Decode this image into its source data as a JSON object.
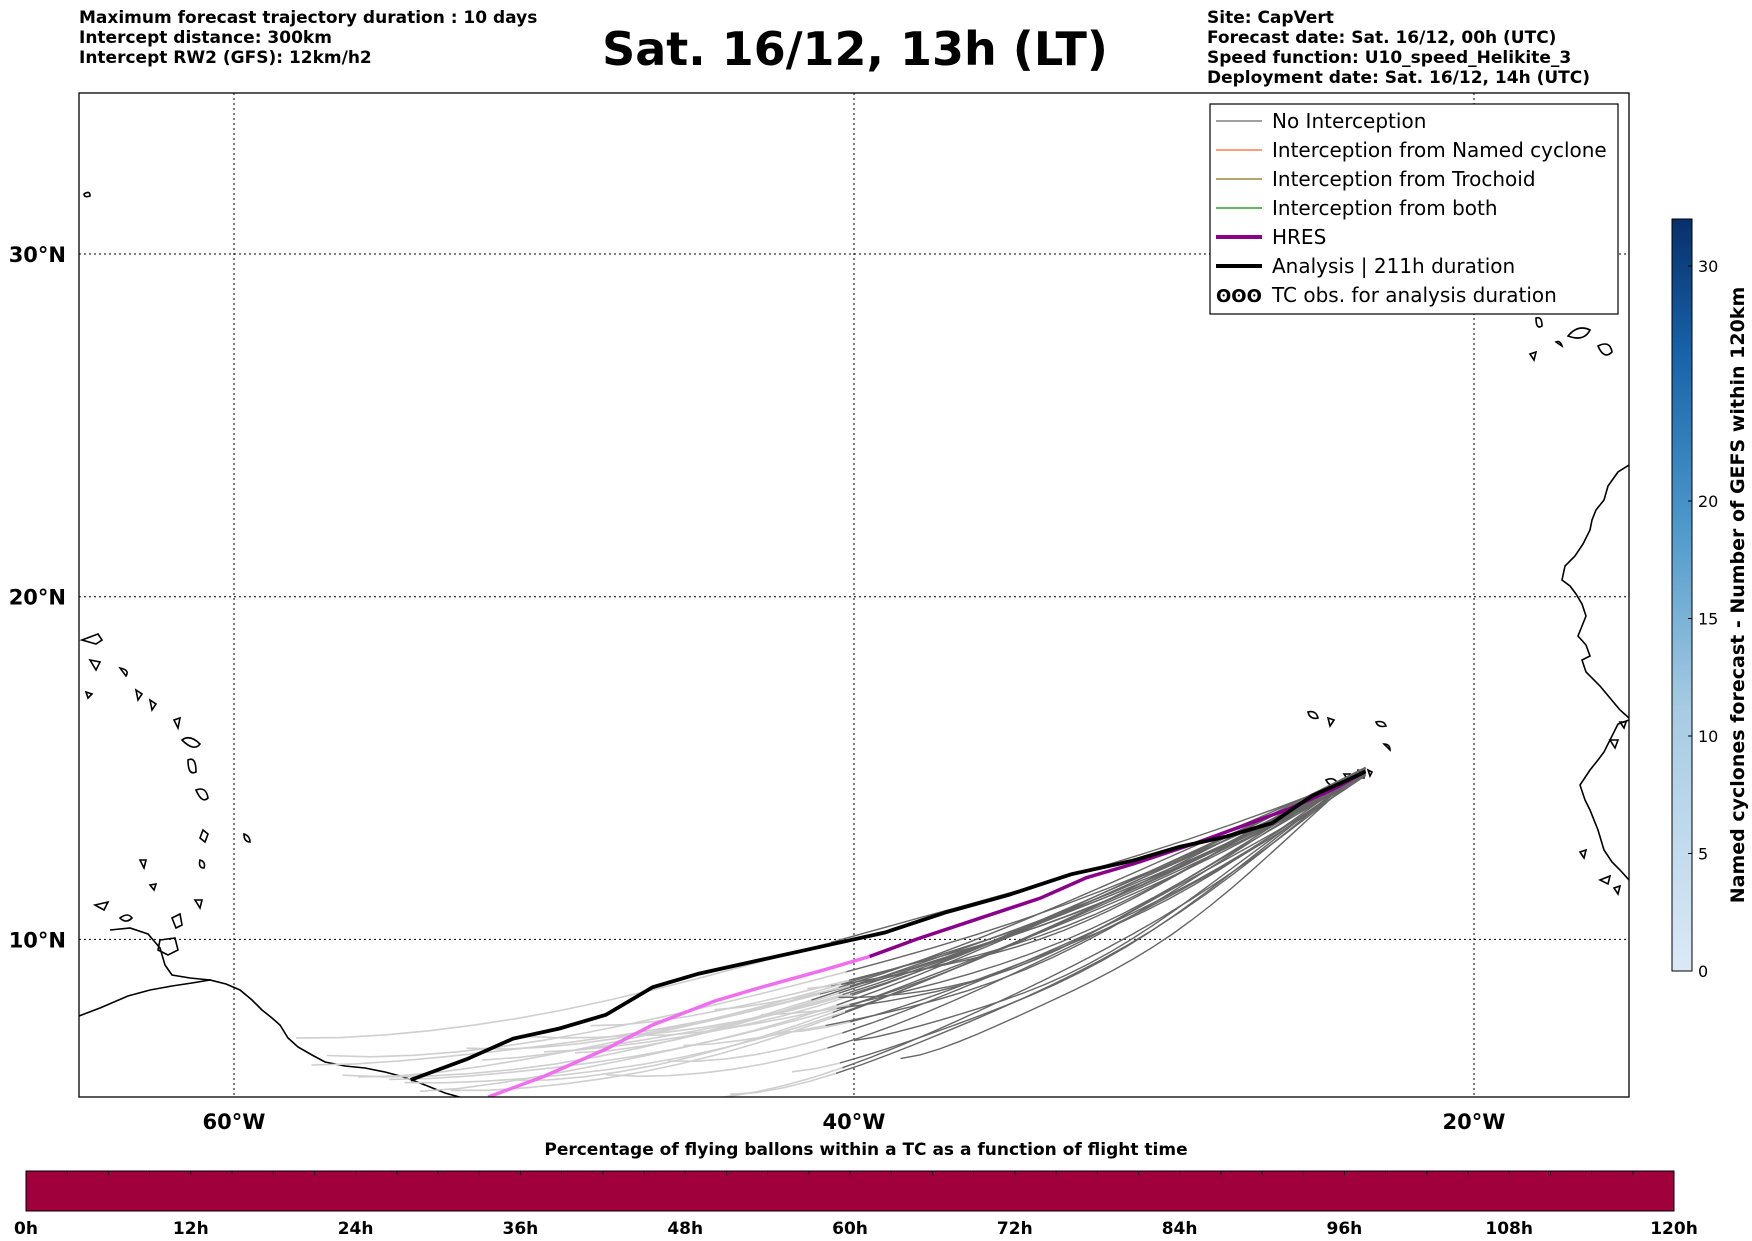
{
  "header": {
    "left_lines": [
      "Maximum forecast trajectory duration : 10 days",
      "Intercept distance: 300km",
      "Intercept RW2 (GFS):  12km/h2"
    ],
    "title": "Sat. 16/12, 13h (LT)",
    "right_lines": [
      "Site: CapVert",
      "Forecast date: Sat. 16/12, 00h (UTC)",
      "Speed function: U10_speed_Helikite_3",
      "Deployment date: Sat. 16/12, 14h (UTC)"
    ]
  },
  "map": {
    "lon_range": [
      -65,
      -15
    ],
    "lat_range": [
      5.4,
      34.7
    ],
    "lat_ticks": [
      {
        "value": 30,
        "label": "30°N"
      },
      {
        "value": 20,
        "label": "20°N"
      },
      {
        "value": 10,
        "label": "10°N"
      }
    ],
    "lon_ticks": [
      {
        "value": -60,
        "label": "60°W"
      },
      {
        "value": -40,
        "label": "40°W"
      },
      {
        "value": -20,
        "label": "20°W"
      }
    ],
    "grid": "dotted",
    "launch_site": {
      "name": "CapVert",
      "lon": -23.5,
      "lat": 14.9
    }
  },
  "legend": {
    "position": "top-right",
    "items": [
      {
        "label": "No Interception",
        "color": "#808080",
        "style": "thin"
      },
      {
        "label": "Interception from Named cyclone",
        "color": "#ff7f50",
        "style": "thin"
      },
      {
        "label": "Interception from Trochoid",
        "color": "#9a8a3a",
        "style": "thin"
      },
      {
        "label": "Interception from both",
        "color": "#2ca02c",
        "style": "thin"
      },
      {
        "label": "HRES",
        "color": "#8b008b",
        "style": "thick"
      },
      {
        "label": "Analysis | 211h duration",
        "color": "#000000",
        "style": "thick"
      },
      {
        "label": "TC obs. for analysis duration",
        "color": "#000000",
        "style": "symbol"
      }
    ]
  },
  "tracks": {
    "analysis": [
      [
        -23.5,
        14.9
      ],
      [
        -24.2,
        14.6
      ],
      [
        -25.2,
        14.2
      ],
      [
        -25.7,
        13.9
      ],
      [
        -26.5,
        13.4
      ],
      [
        -28,
        13
      ],
      [
        -29.5,
        12.7
      ],
      [
        -31,
        12.3
      ],
      [
        -33,
        11.9
      ],
      [
        -35,
        11.3
      ],
      [
        -37,
        10.8
      ],
      [
        -39,
        10.2
      ],
      [
        -41,
        9.8
      ],
      [
        -43,
        9.4
      ],
      [
        -45,
        9.0
      ],
      [
        -46.5,
        8.6
      ],
      [
        -48,
        7.8
      ],
      [
        -49.5,
        7.4
      ],
      [
        -51,
        7.1
      ],
      [
        -52.5,
        6.5
      ],
      [
        -54.3,
        5.9
      ]
    ],
    "hres": [
      [
        -23.5,
        14.9
      ],
      [
        -24.5,
        14.4
      ],
      [
        -26,
        13.8
      ],
      [
        -27.5,
        13.3
      ],
      [
        -29,
        12.8
      ],
      [
        -31,
        12.2
      ],
      [
        -32.5,
        11.8
      ],
      [
        -34,
        11.2
      ],
      [
        -36,
        10.6
      ],
      [
        -38,
        10
      ],
      [
        -39.5,
        9.5
      ],
      [
        -41,
        9.1
      ],
      [
        -43,
        8.6
      ],
      [
        -44.5,
        8.2
      ],
      [
        -46.5,
        7.5
      ],
      [
        -48,
        6.8
      ],
      [
        -50,
        6
      ],
      [
        -51.8,
        5.4
      ]
    ],
    "hres_split_lon": -39.5,
    "ensemble_lon_end": [
      -40,
      -42,
      -44,
      -46,
      -48,
      -50,
      -52,
      -54,
      -56,
      -57,
      -58,
      -40.5,
      -43,
      -45.5,
      -47,
      -49,
      -51,
      -53,
      -55,
      -57.5,
      -38.5,
      -42.5,
      -46,
      -50.5,
      -54.5,
      -41.5,
      -44.5,
      -48.5,
      -52.5,
      -56.5
    ],
    "ensemble_lat_end": [
      7.0,
      6.2,
      5.6,
      5.4,
      6.0,
      6.6,
      6.4,
      5.6,
      6.1,
      6.7,
      7.1,
      8.2,
      7.7,
      6.9,
      7.3,
      6.8,
      5.9,
      5.5,
      5.8,
      6.3,
      6.6,
      7.4,
      6.5,
      7.1,
      5.7,
      8.5,
      8.0,
      7.6,
      6.9,
      6.0
    ]
  },
  "colorbar_right": {
    "label": "Named cyclones forecast - Number of GEFS within 120km",
    "ticks": [
      "0",
      "5",
      "10",
      "15",
      "20",
      "30"
    ],
    "tick_values": [
      0,
      5,
      10,
      15,
      20,
      30
    ],
    "max": 32,
    "color_low": "#dbe9f6",
    "color_high": "#08306b"
  },
  "colorbar_bottom": {
    "label": "Percentage of flying ballons within a TC as a function of flight time",
    "ticks": [
      "0h",
      "12h",
      "24h",
      "36h",
      "48h",
      "60h",
      "72h",
      "84h",
      "96h",
      "108h",
      "120h"
    ],
    "fill_color": "#a0003c"
  }
}
